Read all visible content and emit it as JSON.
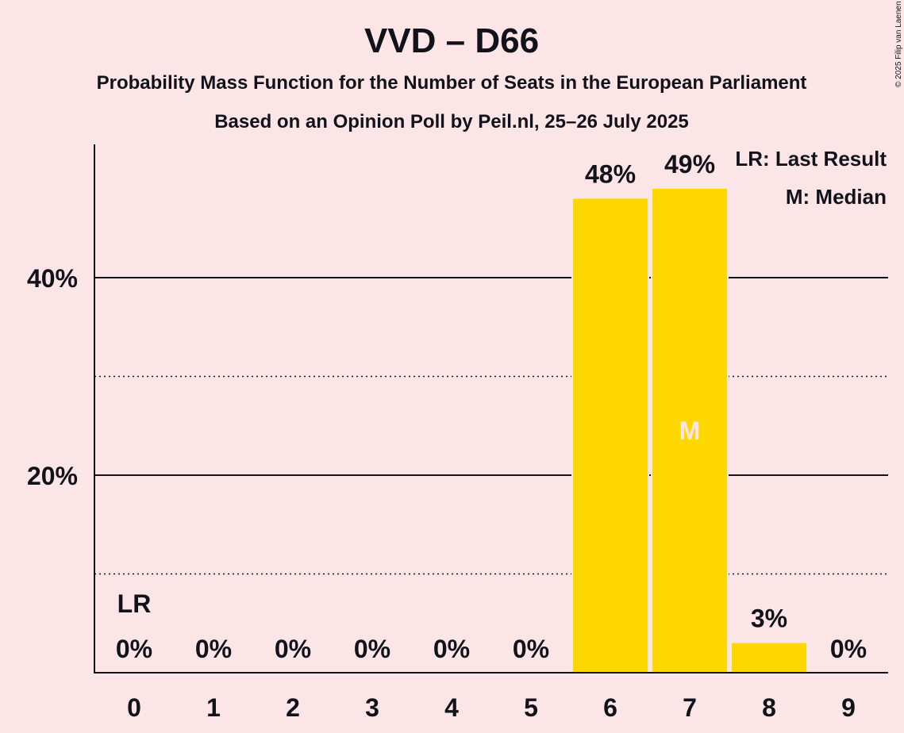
{
  "chart_data": {
    "type": "bar",
    "title": "VVD – D66",
    "subtitle": "Probability Mass Function for the Number of Seats in the European Parliament",
    "subtitle2": "Based on an Opinion Poll by Peil.nl, 25–26 July 2025",
    "copyright": "© 2025 Filip van Laenen",
    "categories": [
      "0",
      "1",
      "2",
      "3",
      "4",
      "5",
      "6",
      "7",
      "8",
      "9"
    ],
    "values": [
      0,
      0,
      0,
      0,
      0,
      0,
      48,
      49,
      3,
      0
    ],
    "value_labels": [
      "0%",
      "0%",
      "0%",
      "0%",
      "0%",
      "0%",
      "48%",
      "49%",
      "3%",
      "0%"
    ],
    "ylim": [
      0,
      53.5
    ],
    "y_major_ticks": [
      20,
      40
    ],
    "y_tick_labels": [
      "20%",
      "40%"
    ],
    "y_minor_ticks": [
      10,
      30
    ],
    "last_result": {
      "category": "0",
      "label": "LR"
    },
    "median": {
      "category": "7",
      "label": "M"
    },
    "legend": [
      "LR: Last Result",
      "M: Median"
    ],
    "bar_color": "#ffd700"
  }
}
